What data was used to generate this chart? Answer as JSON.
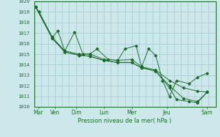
{
  "xlabel": "Pression niveau de la mer( hPa )",
  "background_color": "#cce8ea",
  "grid_color": "#a0c8cc",
  "line_color": "#1a6b2a",
  "ylim": [
    1010,
    1020
  ],
  "yticks": [
    1010,
    1011,
    1012,
    1013,
    1014,
    1015,
    1016,
    1017,
    1018,
    1019,
    1020
  ],
  "xlim": [
    0,
    6.5
  ],
  "day_labels": [
    "Mar",
    "Ven",
    "Dim",
    "Lun",
    "Mer",
    "Jeu",
    "Sam"
  ],
  "day_tick_positions": [
    0.15,
    0.75,
    1.5,
    2.5,
    3.5,
    4.75,
    6.2
  ],
  "series": [
    {
      "x": [
        0.05,
        0.18,
        0.65,
        0.85,
        1.1,
        1.45,
        1.75,
        2.0,
        2.25,
        2.65,
        3.0,
        3.25,
        3.65,
        3.85,
        4.1,
        4.35,
        4.6,
        4.85,
        5.1,
        5.55,
        5.85,
        6.2
      ],
      "y": [
        1019.5,
        1019.0,
        1016.6,
        1017.2,
        1015.3,
        1017.1,
        1015.0,
        1015.0,
        1015.5,
        1014.5,
        1014.4,
        1015.5,
        1015.8,
        1013.8,
        1015.5,
        1014.9,
        1012.5,
        1011.0,
        1012.5,
        1012.2,
        1012.8,
        1013.2
      ]
    },
    {
      "x": [
        0.05,
        0.65,
        1.1,
        1.6,
        2.0,
        2.5,
        3.0,
        3.5,
        3.85,
        4.35,
        4.85,
        5.35,
        5.85,
        6.2
      ],
      "y": [
        1019.5,
        1016.6,
        1015.3,
        1015.0,
        1015.0,
        1014.5,
        1014.4,
        1014.5,
        1013.8,
        1013.5,
        1012.5,
        1011.8,
        1011.5,
        1011.4
      ]
    },
    {
      "x": [
        0.05,
        0.65,
        1.1,
        1.6,
        2.0,
        2.5,
        3.0,
        3.5,
        3.85,
        4.35,
        4.85,
        5.35,
        5.85,
        6.2
      ],
      "y": [
        1019.5,
        1016.5,
        1015.2,
        1014.9,
        1014.8,
        1014.4,
        1014.2,
        1014.2,
        1013.7,
        1013.4,
        1012.0,
        1010.8,
        1010.5,
        1011.4
      ]
    },
    {
      "x": [
        0.05,
        0.65,
        1.1,
        1.6,
        2.0,
        2.5,
        3.0,
        3.5,
        3.85,
        4.35,
        4.85,
        5.1,
        5.55,
        5.85,
        6.2
      ],
      "y": [
        1019.5,
        1016.5,
        1015.2,
        1014.9,
        1014.8,
        1014.4,
        1014.2,
        1014.2,
        1013.7,
        1013.4,
        1011.8,
        1010.7,
        1010.5,
        1010.4,
        1011.4
      ]
    }
  ]
}
